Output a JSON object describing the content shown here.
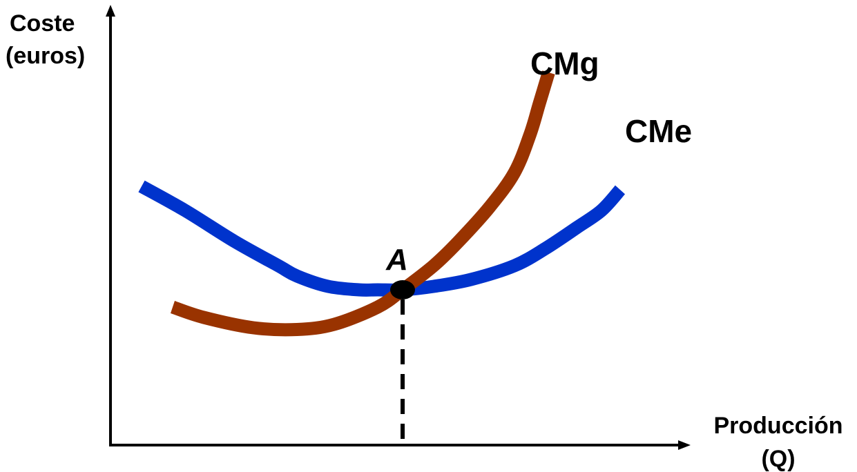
{
  "chart_data": {
    "type": "line",
    "title": "",
    "ylabel_lines": [
      "Coste",
      "(euros)"
    ],
    "xlabel_lines": [
      "Producción",
      "(Q)"
    ],
    "axis_color": "#000000",
    "grid": false,
    "xlim": [
      0,
      100
    ],
    "ylim": [
      0,
      100
    ],
    "series": [
      {
        "name": "CMe",
        "color": "#0033CC",
        "x": [
          5,
          12,
          20,
          27,
          30,
          35,
          40,
          43,
          47,
          52,
          58,
          65,
          70,
          75,
          79,
          82
        ],
        "y": [
          75,
          68,
          59,
          52,
          49,
          46,
          45,
          45,
          45,
          46,
          48,
          52,
          57,
          63,
          68,
          74
        ]
      },
      {
        "name": "CMg",
        "color": "#993300",
        "x": [
          10,
          15,
          23,
          30,
          36,
          43,
          47,
          52,
          56,
          61,
          65,
          67.5,
          69,
          70.5
        ],
        "y": [
          40,
          37,
          34,
          33.5,
          35,
          40,
          45,
          52,
          59,
          69,
          79,
          90,
          99,
          108
        ]
      }
    ],
    "annotations": [
      {
        "label": "A",
        "x": 47,
        "y": 45,
        "marker_color": "#000000",
        "dashed_drop_to_x_axis": true
      }
    ]
  }
}
